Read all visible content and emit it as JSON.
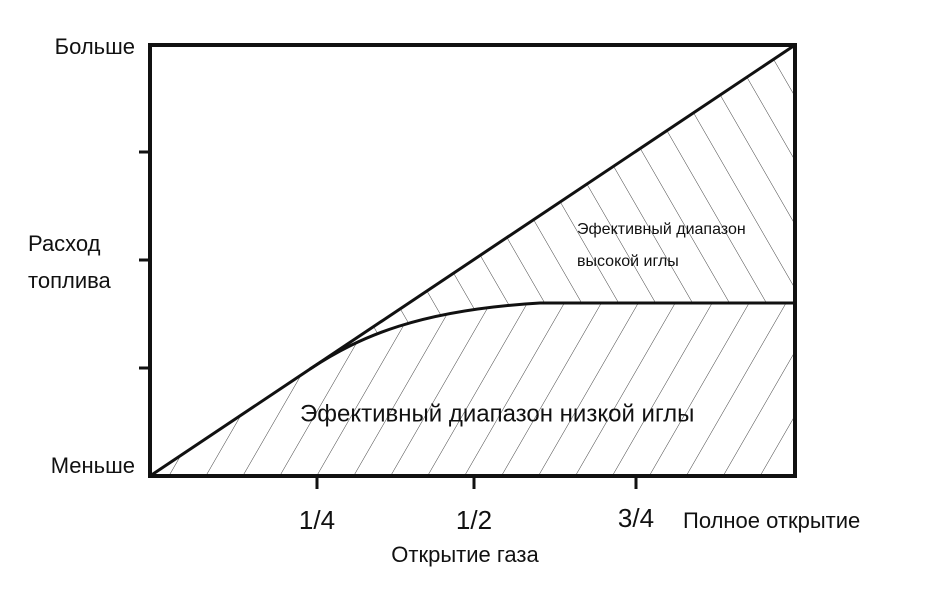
{
  "y_axis": {
    "top": "Больше",
    "label": [
      "Расход",
      "топлива"
    ],
    "bottom": "Меньше"
  },
  "x_axis": {
    "ticks": [
      "1/4",
      "1/2",
      "3/4"
    ],
    "end_label": "Полное открытие",
    "title": "Открытие газа"
  },
  "regions": {
    "high_needle": [
      "Эфективный диапазон",
      "высокой иглы"
    ],
    "low_needle": "Эфективный диапазон низкой иглы"
  }
}
